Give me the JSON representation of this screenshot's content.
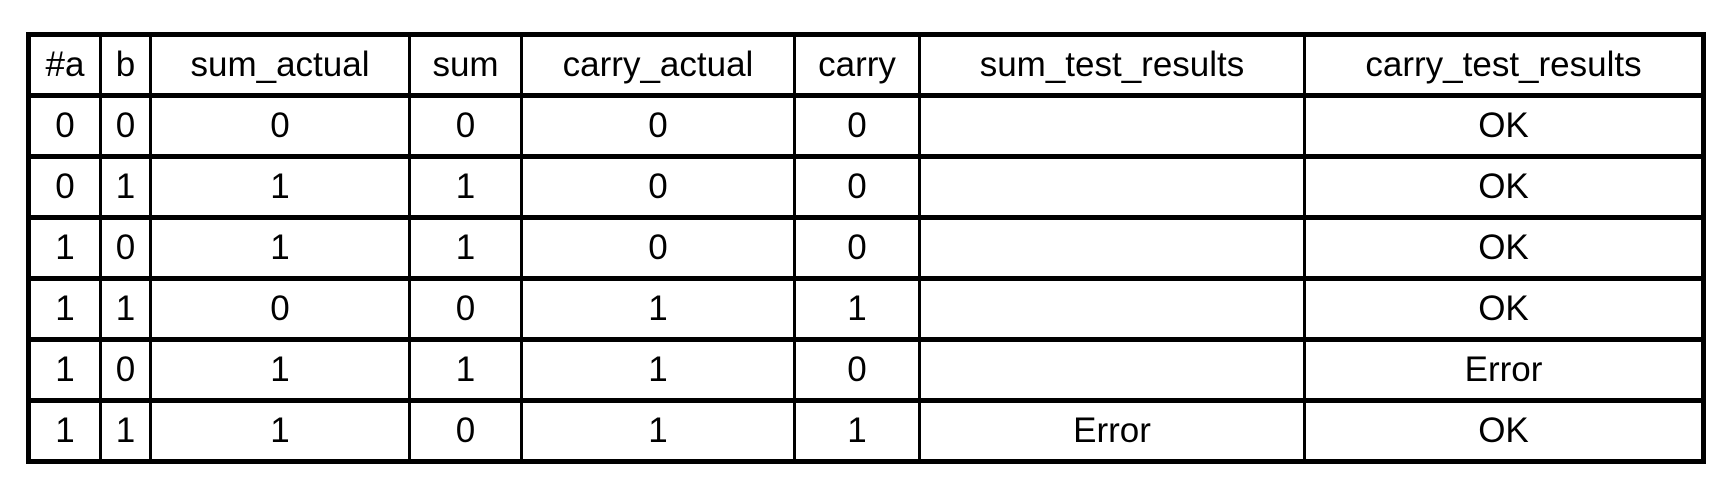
{
  "table": {
    "headers": [
      "#a",
      "b",
      "sum_actual",
      "sum",
      "carry_actual",
      "carry",
      "sum_test_results",
      "carry_test_results"
    ],
    "rows": [
      [
        "0",
        "0",
        "0",
        "0",
        "0",
        "0",
        "",
        "OK"
      ],
      [
        "0",
        "1",
        "1",
        "1",
        "0",
        "0",
        "",
        "OK"
      ],
      [
        "1",
        "0",
        "1",
        "1",
        "0",
        "0",
        "",
        "OK"
      ],
      [
        "1",
        "1",
        "0",
        "0",
        "1",
        "1",
        "",
        "OK"
      ],
      [
        "1",
        "0",
        "1",
        "1",
        "1",
        "0",
        "",
        "Error"
      ],
      [
        "1",
        "1",
        "1",
        "0",
        "1",
        "1",
        "Error",
        "OK"
      ]
    ]
  }
}
